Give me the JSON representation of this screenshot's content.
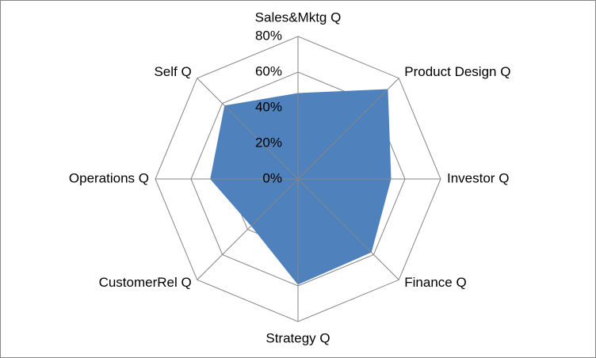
{
  "chart_data": {
    "type": "radar",
    "categories": [
      "Sales&Mktg Q",
      "Product Design Q",
      "Investor Q",
      "Finance Q",
      "Strategy Q",
      "CustomerRel Q",
      "Operations Q",
      "Self Q"
    ],
    "values": [
      48,
      71,
      52,
      58,
      59,
      37,
      49,
      58
    ],
    "color": "#4f81bd",
    "ylim": [
      0,
      80
    ],
    "yticks": [
      {
        "value": 0,
        "label": "0%"
      },
      {
        "value": 20,
        "label": "20%"
      },
      {
        "value": 40,
        "label": "40%"
      },
      {
        "value": 60,
        "label": "60%"
      },
      {
        "value": 80,
        "label": "80%"
      }
    ],
    "grid": true
  }
}
